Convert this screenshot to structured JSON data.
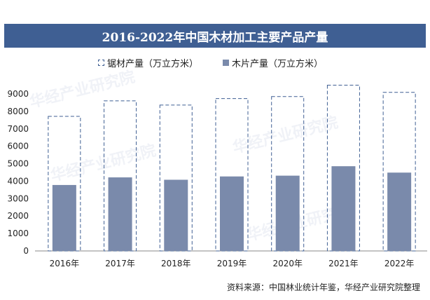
{
  "title": "2016-2022年中国木材加工主要产品产量",
  "source": "资料来源：中国林业统计年鉴，华经产业研究院整理",
  "watermark": "华经产业研究院",
  "colors": {
    "title_band": "#3f5f93",
    "sawn_outline": "#3f5f93",
    "wood_chip_fill": "#7a8aab",
    "axis": "#8a8a8a"
  },
  "chart_data": {
    "type": "bar",
    "categories": [
      "2016年",
      "2017年",
      "2018年",
      "2019年",
      "2020年",
      "2021年",
      "2022年"
    ],
    "series": [
      {
        "name": "锯材产量（万立方米）",
        "values": [
          7716,
          8602,
          8362,
          8735,
          8851,
          9502,
          9089
        ],
        "style": "dashed-outline"
      },
      {
        "name": "木片产量（万立方米）",
        "values": [
          3780,
          4216,
          4080,
          4270,
          4315,
          4856,
          4490
        ],
        "style": "filled"
      }
    ],
    "yticks": [
      0,
      1000,
      2000,
      3000,
      4000,
      5000,
      6000,
      7000,
      8000,
      9000
    ],
    "ylim": [
      0,
      9500
    ],
    "legend_position": "top",
    "grid": false
  }
}
